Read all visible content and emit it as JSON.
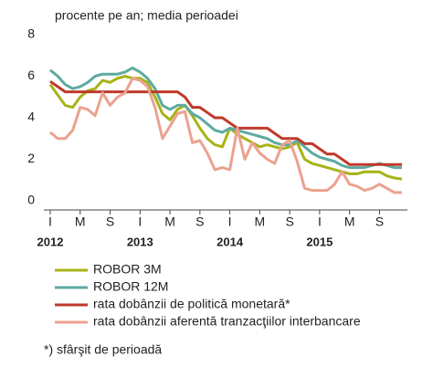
{
  "chart_data": {
    "type": "line",
    "subtitle": "procente pe an; media perioadei",
    "categories": [
      "I",
      null,
      null,
      null,
      "M",
      null,
      null,
      null,
      "S",
      null,
      null,
      null,
      "I",
      null,
      null,
      null,
      "M",
      null,
      null,
      null,
      "S",
      null,
      null,
      null,
      "I",
      null,
      null,
      null,
      "M",
      null,
      null,
      null,
      "S",
      null,
      null,
      null,
      "I",
      null,
      null,
      null,
      "M",
      null,
      null,
      null,
      "S",
      null,
      null,
      null
    ],
    "years": [
      "2012",
      "2013",
      "2014",
      "2015"
    ],
    "ylim": [
      0,
      8
    ],
    "yticks": [
      0,
      2,
      4,
      6,
      8
    ],
    "series": [
      {
        "name": "ROBOR 3M",
        "color": "#a7b317",
        "values": [
          5.6,
          5.1,
          4.6,
          4.5,
          5.0,
          5.3,
          5.4,
          5.8,
          5.7,
          5.9,
          6.0,
          5.9,
          5.9,
          5.7,
          5.0,
          4.2,
          3.9,
          4.4,
          4.6,
          4.1,
          3.5,
          3.0,
          2.7,
          2.6,
          3.5,
          3.2,
          3.0,
          2.8,
          2.6,
          2.7,
          2.6,
          2.5,
          2.6,
          2.8,
          2.0,
          1.8,
          1.7,
          1.6,
          1.5,
          1.4,
          1.3,
          1.3,
          1.4,
          1.4,
          1.4,
          1.2,
          1.1,
          1.05
        ]
      },
      {
        "name": "ROBOR 12M",
        "color": "#5eaaa2",
        "values": [
          6.3,
          6.0,
          5.6,
          5.4,
          5.5,
          5.7,
          6.0,
          6.1,
          6.1,
          6.1,
          6.2,
          6.4,
          6.2,
          5.9,
          5.4,
          4.6,
          4.4,
          4.6,
          4.6,
          4.2,
          4.0,
          3.7,
          3.4,
          3.3,
          3.5,
          3.4,
          3.3,
          3.2,
          3.1,
          3.0,
          2.8,
          2.7,
          2.7,
          2.9,
          2.6,
          2.3,
          2.1,
          2.0,
          1.9,
          1.7,
          1.6,
          1.6,
          1.6,
          1.7,
          1.8,
          1.7,
          1.6,
          1.6
        ]
      },
      {
        "name": "rata dobânzii de politică monetară*",
        "color": "#c0392b",
        "values": [
          5.75,
          5.5,
          5.25,
          5.25,
          5.25,
          5.25,
          5.25,
          5.25,
          5.25,
          5.25,
          5.25,
          5.25,
          5.25,
          5.25,
          5.25,
          5.25,
          5.25,
          5.25,
          5.0,
          4.5,
          4.5,
          4.25,
          4.0,
          4.0,
          3.75,
          3.5,
          3.5,
          3.5,
          3.5,
          3.5,
          3.25,
          3.0,
          3.0,
          3.0,
          2.75,
          2.75,
          2.5,
          2.25,
          2.25,
          2.0,
          1.75,
          1.75,
          1.75,
          1.75,
          1.75,
          1.75,
          1.75,
          1.75
        ]
      },
      {
        "name": "rata dobânzii aferentă tranzacţiilor interbancare",
        "color": "#eba28f",
        "values": [
          3.3,
          3.0,
          3.0,
          3.4,
          4.5,
          4.4,
          4.1,
          5.2,
          4.6,
          5.0,
          5.2,
          5.9,
          5.8,
          5.5,
          4.5,
          3.0,
          3.6,
          4.2,
          4.3,
          2.8,
          2.9,
          2.3,
          1.5,
          1.6,
          1.5,
          3.5,
          2.0,
          2.8,
          2.3,
          2.0,
          1.8,
          2.7,
          2.9,
          1.9,
          0.6,
          0.5,
          0.5,
          0.5,
          0.8,
          1.4,
          0.8,
          0.7,
          0.5,
          0.6,
          0.8,
          0.6,
          0.4,
          0.4
        ]
      }
    ],
    "footnote": "*) sfârşit de perioadă"
  }
}
